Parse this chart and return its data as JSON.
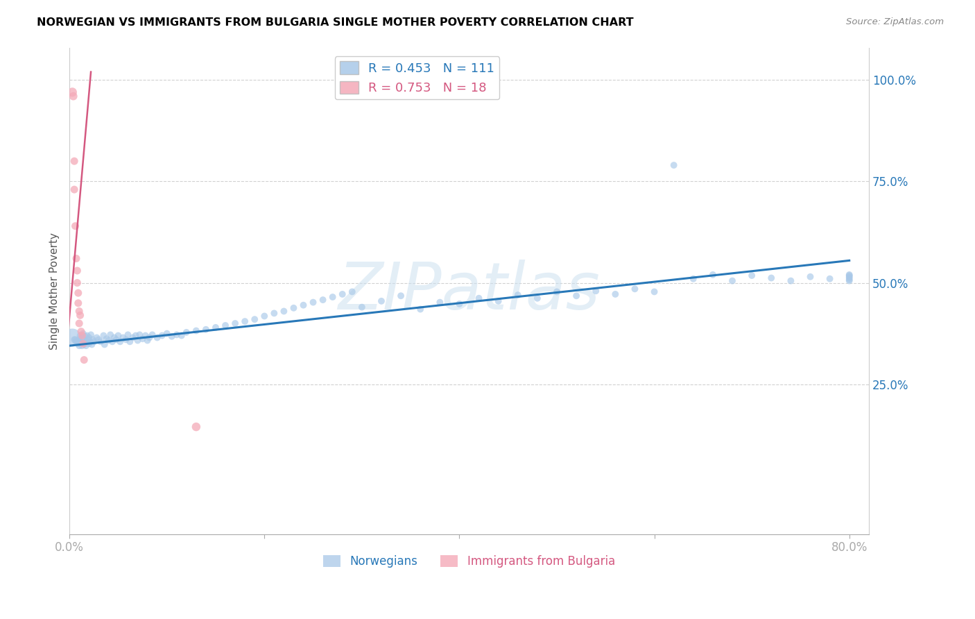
{
  "title": "NORWEGIAN VS IMMIGRANTS FROM BULGARIA SINGLE MOTHER POVERTY CORRELATION CHART",
  "source": "Source: ZipAtlas.com",
  "ylabel": "Single Mother Poverty",
  "ytick_labels": [
    "25.0%",
    "50.0%",
    "75.0%",
    "100.0%"
  ],
  "ytick_values": [
    0.25,
    0.5,
    0.75,
    1.0
  ],
  "xtick_values": [
    0.0,
    0.2,
    0.4,
    0.6,
    0.8
  ],
  "xtick_labels": [
    "0.0%",
    "",
    "",
    "",
    "80.0%"
  ],
  "xlim": [
    0.0,
    0.82
  ],
  "ylim": [
    -0.12,
    1.08
  ],
  "legend_blue_r": "R = 0.453",
  "legend_blue_n": "N = 111",
  "legend_pink_r": "R = 0.753",
  "legend_pink_n": "N = 18",
  "blue_color": "#a8c8e8",
  "blue_line_color": "#2878b8",
  "pink_color": "#f4aab8",
  "pink_line_color": "#d45880",
  "watermark_text": "ZIPatlas",
  "blue_scatter_x": [
    0.003,
    0.005,
    0.006,
    0.007,
    0.008,
    0.009,
    0.01,
    0.01,
    0.011,
    0.011,
    0.012,
    0.013,
    0.013,
    0.014,
    0.014,
    0.015,
    0.015,
    0.016,
    0.016,
    0.017,
    0.018,
    0.018,
    0.019,
    0.02,
    0.02,
    0.021,
    0.022,
    0.023,
    0.024,
    0.025,
    0.028,
    0.03,
    0.032,
    0.035,
    0.036,
    0.038,
    0.04,
    0.042,
    0.044,
    0.046,
    0.048,
    0.05,
    0.052,
    0.055,
    0.058,
    0.06,
    0.062,
    0.065,
    0.068,
    0.07,
    0.072,
    0.075,
    0.078,
    0.08,
    0.082,
    0.085,
    0.09,
    0.095,
    0.1,
    0.105,
    0.11,
    0.115,
    0.12,
    0.13,
    0.14,
    0.15,
    0.16,
    0.17,
    0.18,
    0.19,
    0.2,
    0.21,
    0.22,
    0.23,
    0.24,
    0.25,
    0.26,
    0.27,
    0.28,
    0.29,
    0.3,
    0.32,
    0.34,
    0.36,
    0.38,
    0.4,
    0.42,
    0.44,
    0.46,
    0.48,
    0.5,
    0.52,
    0.54,
    0.56,
    0.58,
    0.6,
    0.62,
    0.64,
    0.66,
    0.68,
    0.7,
    0.72,
    0.74,
    0.76,
    0.78,
    0.8,
    0.8,
    0.8,
    0.8,
    0.8,
    0.8
  ],
  "blue_scatter_y": [
    0.365,
    0.36,
    0.36,
    0.355,
    0.355,
    0.35,
    0.345,
    0.36,
    0.355,
    0.37,
    0.35,
    0.345,
    0.365,
    0.35,
    0.375,
    0.348,
    0.36,
    0.352,
    0.368,
    0.345,
    0.355,
    0.37,
    0.36,
    0.35,
    0.365,
    0.355,
    0.372,
    0.348,
    0.36,
    0.355,
    0.365,
    0.36,
    0.355,
    0.37,
    0.348,
    0.362,
    0.358,
    0.372,
    0.355,
    0.365,
    0.36,
    0.37,
    0.355,
    0.365,
    0.36,
    0.372,
    0.355,
    0.365,
    0.37,
    0.358,
    0.372,
    0.362,
    0.37,
    0.358,
    0.365,
    0.372,
    0.365,
    0.37,
    0.375,
    0.368,
    0.372,
    0.37,
    0.378,
    0.382,
    0.385,
    0.39,
    0.395,
    0.4,
    0.405,
    0.41,
    0.418,
    0.425,
    0.43,
    0.438,
    0.445,
    0.452,
    0.458,
    0.465,
    0.472,
    0.478,
    0.44,
    0.455,
    0.468,
    0.435,
    0.452,
    0.448,
    0.462,
    0.455,
    0.47,
    0.462,
    0.478,
    0.468,
    0.48,
    0.472,
    0.485,
    0.478,
    0.79,
    0.51,
    0.52,
    0.505,
    0.518,
    0.512,
    0.505,
    0.515,
    0.51,
    0.52,
    0.518,
    0.505,
    0.512,
    0.508,
    0.515
  ],
  "blue_large_size": 350,
  "blue_regular_size": 50,
  "pink_scatter_x": [
    0.003,
    0.004,
    0.005,
    0.005,
    0.006,
    0.007,
    0.008,
    0.008,
    0.009,
    0.009,
    0.01,
    0.01,
    0.011,
    0.012,
    0.013,
    0.014,
    0.015,
    0.13
  ],
  "pink_scatter_y": [
    0.97,
    0.96,
    0.8,
    0.73,
    0.64,
    0.56,
    0.53,
    0.5,
    0.475,
    0.45,
    0.43,
    0.4,
    0.42,
    0.38,
    0.37,
    0.35,
    0.31,
    0.145
  ],
  "pink_scatter_sizes": [
    50,
    40,
    35,
    35,
    35,
    35,
    35,
    35,
    35,
    35,
    35,
    35,
    35,
    35,
    35,
    35,
    35,
    45
  ],
  "blue_line_x0": 0.0,
  "blue_line_x1": 0.8,
  "blue_line_y0": 0.345,
  "blue_line_y1": 0.555,
  "pink_line_x0": -0.005,
  "pink_line_x1": 0.022,
  "pink_line_y0": 0.28,
  "pink_line_y1": 1.02
}
